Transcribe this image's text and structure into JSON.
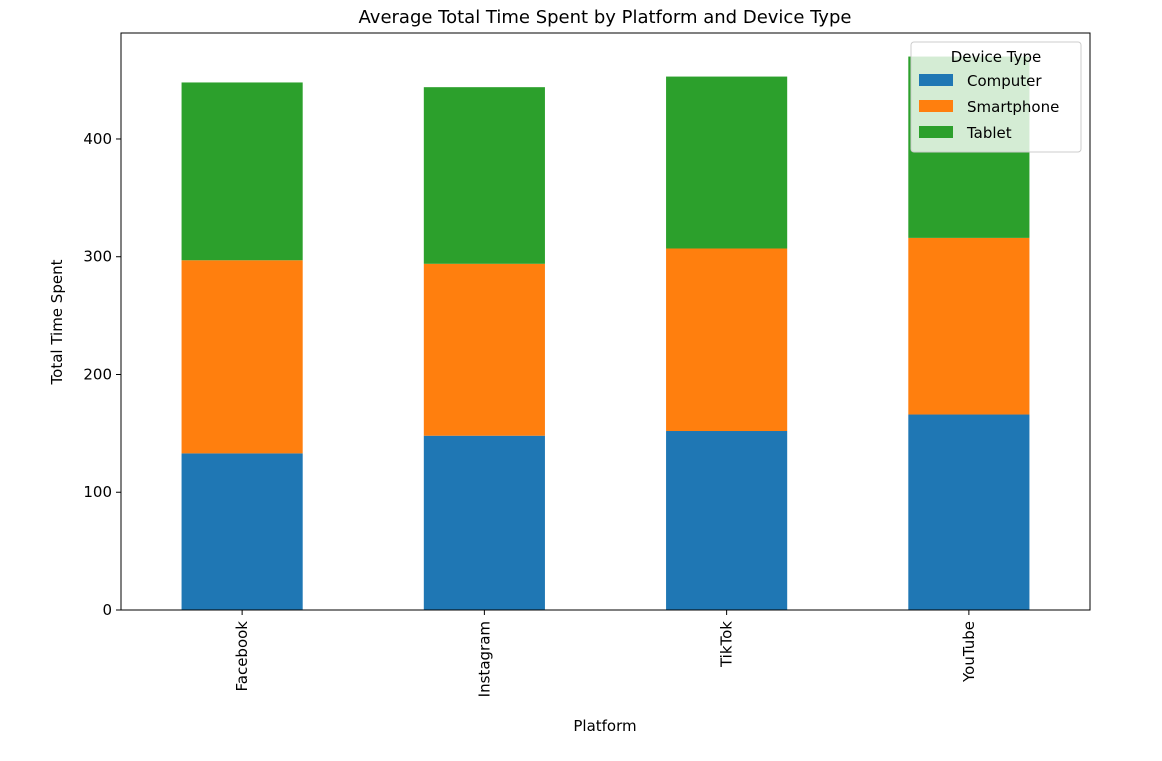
{
  "chart_data": {
    "type": "bar",
    "stacked": true,
    "title": "Average Total Time Spent by Platform and Device Type",
    "xlabel": "Platform",
    "ylabel": "Total Time Spent",
    "categories": [
      "Facebook",
      "Instagram",
      "TikTok",
      "YouTube"
    ],
    "series": [
      {
        "name": "Computer",
        "color": "#1f77b4",
        "values": [
          133,
          148,
          152,
          166
        ]
      },
      {
        "name": "Smartphone",
        "color": "#ff7f0e",
        "values": [
          164,
          146,
          155,
          150
        ]
      },
      {
        "name": "Tablet",
        "color": "#2ca02c",
        "values": [
          151,
          150,
          146,
          154
        ]
      }
    ],
    "ylim": [
      0,
      490
    ],
    "yticks": [
      0,
      100,
      200,
      300,
      400
    ],
    "legend": {
      "title": "Device Type",
      "placement": "top-right"
    },
    "grid": false
  }
}
